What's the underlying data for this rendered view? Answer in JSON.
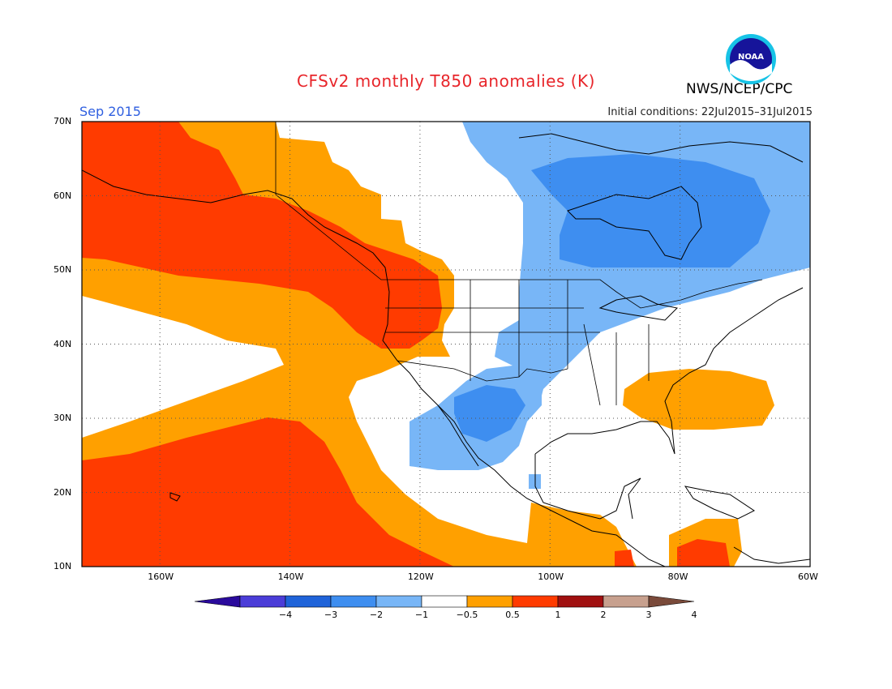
{
  "header": {
    "title": "CFSv2 monthly T850 anomalies (K)",
    "agency": "NWS/NCEP/CPC",
    "month": "Sep 2015",
    "initial_conditions": "Initial conditions: 22Jul2015–31Jul2015",
    "logo_text": "NOAA"
  },
  "map": {
    "lat_labels": [
      "70N",
      "60N",
      "50N",
      "40N",
      "30N",
      "20N",
      "10N"
    ],
    "lon_labels": [
      "160W",
      "140W",
      "120W",
      "100W",
      "80W",
      "60W"
    ],
    "extent": {
      "lon_min": -172,
      "lon_max": -60,
      "lat_min": 10,
      "lat_max": 70
    }
  },
  "colorbar": {
    "tick_labels": [
      "−4",
      "−3",
      "−2",
      "−1",
      "−0.5",
      "0.5",
      "1",
      "2",
      "3",
      "4"
    ],
    "colors": [
      "#2a0a9c",
      "#4b3dd8",
      "#1f63d9",
      "#3e8ef0",
      "#78b6f7",
      "#ffffff",
      "#ffa000",
      "#ff3b00",
      "#a01010",
      "#c7a08e",
      "#7a4a3a"
    ]
  },
  "colors": {
    "strong_warm": "#ff3b00",
    "warm": "#ffa000",
    "light_cool": "#78b6f7",
    "cool": "#3e8ef0",
    "coast": "#000000",
    "grid": "#555555"
  }
}
